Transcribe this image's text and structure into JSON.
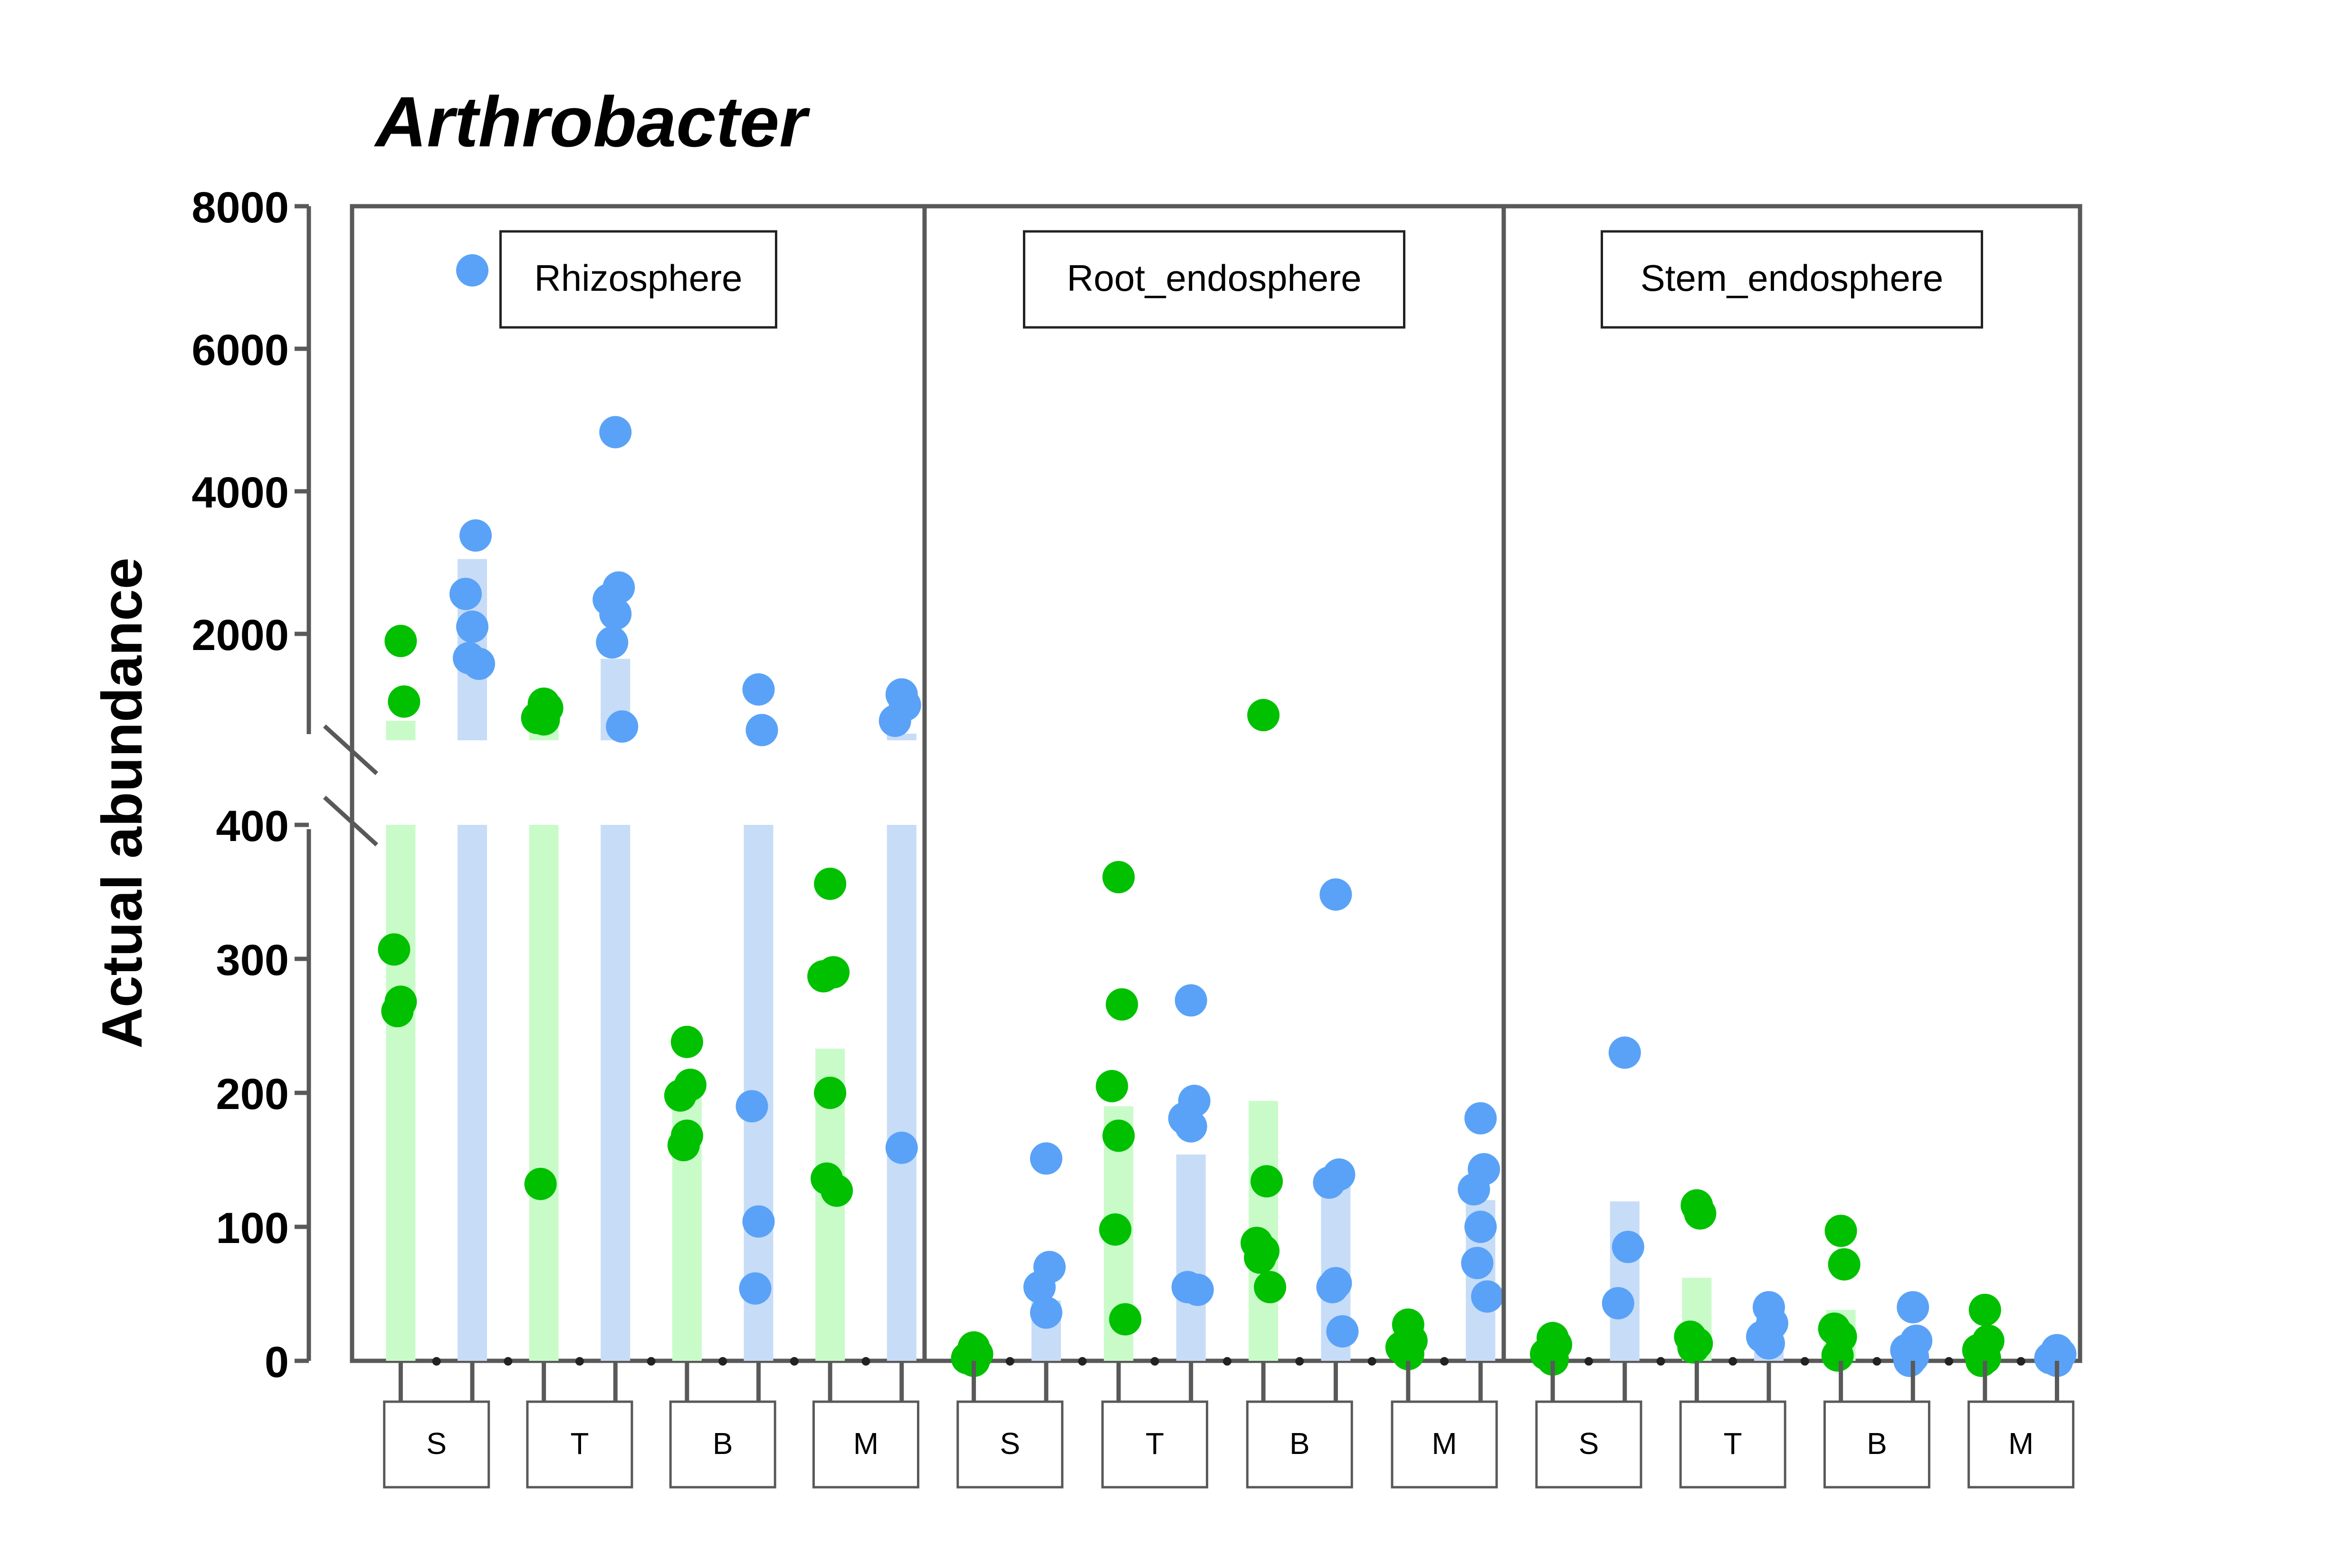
{
  "chart_data": {
    "type": "bar",
    "title": "Arthrobacter",
    "ylabel": "Actual abundance",
    "xlabel": "",
    "broken_axis": {
      "lower_range": [
        0,
        400
      ],
      "upper_range": [
        650,
        8000
      ],
      "lower_ticks": [
        "0",
        "100",
        "200",
        "300",
        "400"
      ],
      "upper_ticks": [
        "2000",
        "4000",
        "6000",
        "8000"
      ]
    },
    "categories": [
      "S",
      "T",
      "B",
      "M"
    ],
    "colors": {
      "green_bar": "#c9fbc9",
      "blue_bar": "#c7dcf7",
      "green_point": "#00c000",
      "blue_point": "#5aa2f7",
      "frame": "#595959"
    },
    "panels": [
      {
        "name": "Rhizosphere",
        "groups": [
          {
            "category": "S",
            "green": {
              "bar": 780,
              "points": [
                1900,
                1050,
                307,
                268,
                261
              ]
            },
            "blue": {
              "bar": 3050,
              "points": [
                7100,
                3380,
                2560,
                2100,
                1660,
                1580
              ]
            }
          },
          {
            "category": "T",
            "green": {
              "bar": 850,
              "points": [
                1020,
                960,
                820,
                800,
                132
              ]
            },
            "blue": {
              "bar": 1650,
              "points": [
                4830,
                2650,
                2480,
                2280,
                1880,
                700
              ]
            }
          },
          {
            "category": "B",
            "green": {
              "bar": 205,
              "points": [
                238,
                206,
                198,
                168,
                161
              ]
            },
            "blue": {
              "bar": 510,
              "points": [
                1220,
                650,
                190,
                104,
                54
              ]
            }
          },
          {
            "category": "M",
            "green": {
              "bar": 233,
              "points": [
                356,
                290,
                287,
                200,
                136,
                127
              ]
            },
            "blue": {
              "bar": 600,
              "points": [
                1150,
                1000,
                780,
                159
              ]
            }
          }
        ]
      },
      {
        "name": "Root_endosphere",
        "groups": [
          {
            "category": "S",
            "green": {
              "bar": 3,
              "points": [
                10,
                5,
                2,
                0
              ]
            },
            "blue": {
              "bar": 45,
              "points": [
                151,
                70,
                55,
                36
              ]
            }
          },
          {
            "category": "T",
            "green": {
              "bar": 190,
              "points": [
                361,
                266,
                205,
                168,
                98,
                31
              ]
            },
            "blue": {
              "bar": 154,
              "points": [
                269,
                194,
                181,
                175,
                55,
                53
              ]
            }
          },
          {
            "category": "B",
            "green": {
              "bar": 194,
              "points": [
                860,
                134,
                88,
                82,
                77,
                55
              ]
            },
            "blue": {
              "bar": 130,
              "points": [
                348,
                139,
                133,
                58,
                55,
                22
              ]
            }
          },
          {
            "category": "M",
            "green": {
              "bar": 10,
              "points": [
                27,
                15,
                10,
                5
              ]
            },
            "blue": {
              "bar": 120,
              "points": [
                181,
                143,
                128,
                100,
                73,
                48
              ]
            }
          }
        ]
      },
      {
        "name": "Stem_endosphere",
        "groups": [
          {
            "category": "S",
            "green": {
              "bar": 6,
              "points": [
                17,
                12,
                5,
                1
              ]
            },
            "blue": {
              "bar": 119,
              "points": [
                230,
                85,
                43
              ]
            }
          },
          {
            "category": "T",
            "green": {
              "bar": 62,
              "points": [
                116,
                110,
                18,
                13,
                10
              ]
            },
            "blue": {
              "bar": 25,
              "points": [
                40,
                28,
                18,
                13
              ]
            }
          },
          {
            "category": "B",
            "green": {
              "bar": 38,
              "points": [
                97,
                72,
                24,
                18,
                4
              ]
            },
            "blue": {
              "bar": 10,
              "points": [
                40,
                15,
                8,
                3,
                0
              ]
            }
          },
          {
            "category": "M",
            "green": {
              "bar": 10,
              "points": [
                38,
                15,
                8,
                2,
                0
              ]
            },
            "blue": {
              "bar": 4,
              "points": [
                8,
                5,
                2,
                0
              ]
            }
          }
        ]
      }
    ]
  }
}
